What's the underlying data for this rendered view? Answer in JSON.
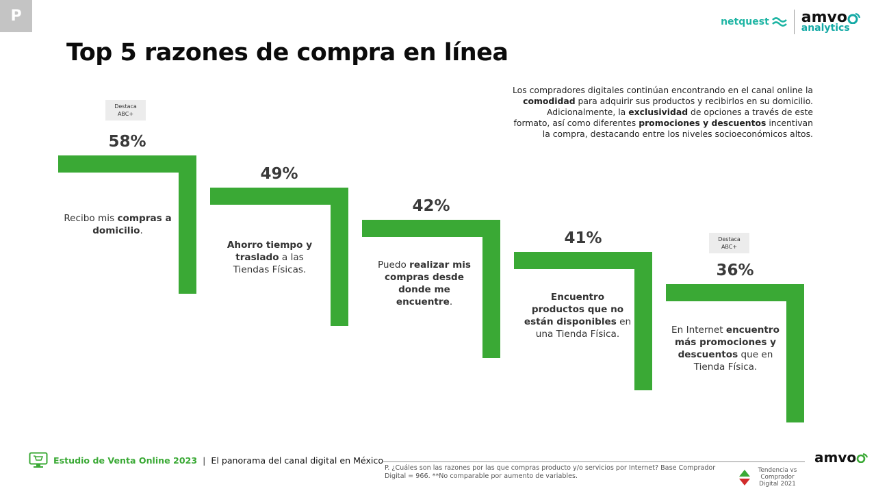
{
  "corner_badge": "P",
  "title": "Top 5 razones de compra en línea",
  "logos": {
    "netquest": "netquest",
    "amvo": "amvo",
    "analytics": "analytics"
  },
  "description": {
    "parts": [
      {
        "text": "Los compradores digitales continúan encontrando en el canal online la ",
        "bold": false
      },
      {
        "text": "comodidad",
        "bold": true
      },
      {
        "text": " para adquirir sus productos y recibirlos en su domicilio. Adicionalmente, la ",
        "bold": false
      },
      {
        "text": "exclusividad",
        "bold": true
      },
      {
        "text": " de opciones a través de este formato, así como diferentes ",
        "bold": false
      },
      {
        "text": "promociones y descuentos",
        "bold": true
      },
      {
        "text": " incentivan la compra, destacando entre los niveles socioeconómicos altos.",
        "bold": false
      }
    ]
  },
  "chart_data": {
    "type": "bar",
    "unit": "%",
    "categories": [
      "Recibo mis compras a domicilio.",
      "Ahorro tiempo y traslado a las Tiendas Físicas.",
      "Puedo realizar mis compras desde donde me encuentre.",
      "Encuentro productos que no están disponibles en una Tienda Física.",
      "En Internet encuentro más promociones y descuentos que en Tienda Física."
    ],
    "values": [
      58,
      49,
      42,
      41,
      36
    ],
    "value_labels": [
      "58%",
      "49%",
      "42%",
      "41%",
      "36%"
    ],
    "bar_color": "#3aa935"
  },
  "reasons": [
    [
      {
        "text": "Recibo mis ",
        "bold": false
      },
      {
        "text": "compras a domicilio",
        "bold": true
      },
      {
        "text": ".",
        "bold": false
      }
    ],
    [
      {
        "text": "Ahorro tiempo y traslado",
        "bold": true
      },
      {
        "text": " a las Tiendas Físicas.",
        "bold": false
      }
    ],
    [
      {
        "text": "Puedo ",
        "bold": false
      },
      {
        "text": "realizar mis compras desde donde me encuentre",
        "bold": true
      },
      {
        "text": ".",
        "bold": false
      }
    ],
    [
      {
        "text": "Encuentro productos que no están disponibles",
        "bold": true
      },
      {
        "text": " en una Tienda Física.",
        "bold": false
      }
    ],
    [
      {
        "text": "En Internet ",
        "bold": false
      },
      {
        "text": "encuentro más promociones y descuentos",
        "bold": true
      },
      {
        "text": " que en Tienda Física.",
        "bold": false
      }
    ]
  ],
  "highlight_tags": [
    {
      "line1": "Destaca",
      "line2": "ABC+"
    },
    {
      "line1": "Destaca",
      "line2": "ABC+"
    }
  ],
  "footer": {
    "study": "Estudio de Venta Online 2023",
    "separator": "|",
    "subtitle": "El panorama del canal digital en México",
    "footnote": "P. ¿Cuáles son las razones por las que compras producto y/o servicios por Internet? Base Comprador Digital = 966. **No comparable por aumento de variables.",
    "trend_legend": "Tendencia vs Comprador Digital 2021",
    "trend_up_color": "#3aa935",
    "trend_down_color": "#d12b2b",
    "amvo": "amvo"
  }
}
